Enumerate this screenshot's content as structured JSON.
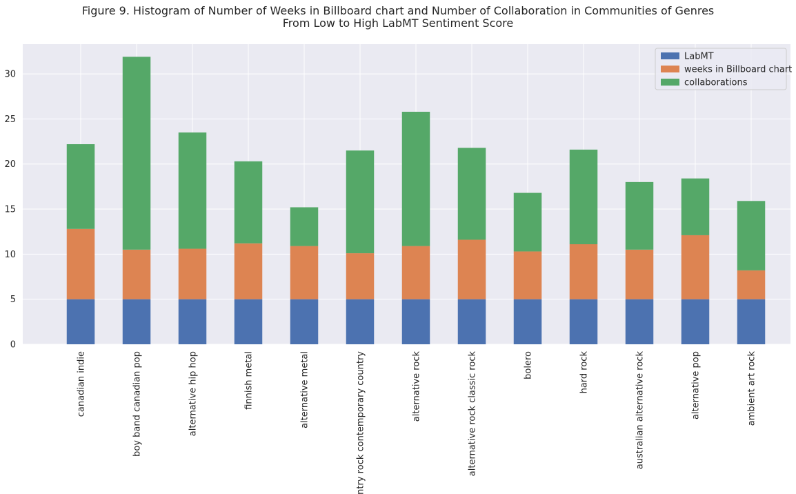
{
  "chart_data": {
    "type": "bar",
    "stacked": true,
    "title": "Figure 9. Histogram of Number of Weeks in  Billboard chart and Number of Collaboration in Communities of Genres",
    "subtitle": "From Low to High LabMT Sentiment Score",
    "xlabel": "",
    "ylabel": "",
    "ylim": [
      0,
      33.3
    ],
    "yticks": [
      0,
      5,
      10,
      15,
      20,
      25,
      30
    ],
    "grid": true,
    "legend_position": "top-right",
    "categories": [
      "canadian indie",
      "boy band canadian pop",
      "alternative hip hop",
      "finnish metal",
      "alternative metal",
      "country rock contemporary country",
      "alternative rock",
      "alternative rock classic rock",
      "bolero",
      "hard rock",
      "australian alternative rock",
      "alternative pop",
      "ambient art rock"
    ],
    "series": [
      {
        "name": "LabMT",
        "color": "#4c72b0",
        "values": [
          5.0,
          5.0,
          5.0,
          5.0,
          5.0,
          5.0,
          5.0,
          5.0,
          5.0,
          5.0,
          5.0,
          5.0,
          5.0
        ]
      },
      {
        "name": "weeks in  Billboard chart",
        "color": "#dd8452",
        "values": [
          7.8,
          5.5,
          5.6,
          6.2,
          5.9,
          5.1,
          5.9,
          6.6,
          5.3,
          6.1,
          5.5,
          7.1,
          3.2
        ]
      },
      {
        "name": "collaborations",
        "color": "#55a868",
        "values": [
          9.4,
          21.4,
          12.9,
          9.1,
          4.3,
          11.4,
          14.9,
          10.2,
          6.5,
          10.5,
          7.5,
          6.3,
          7.7
        ]
      }
    ],
    "colors": {
      "plot_background": "#eaeaf2",
      "grid": "#ffffff",
      "text": "#262626"
    }
  }
}
